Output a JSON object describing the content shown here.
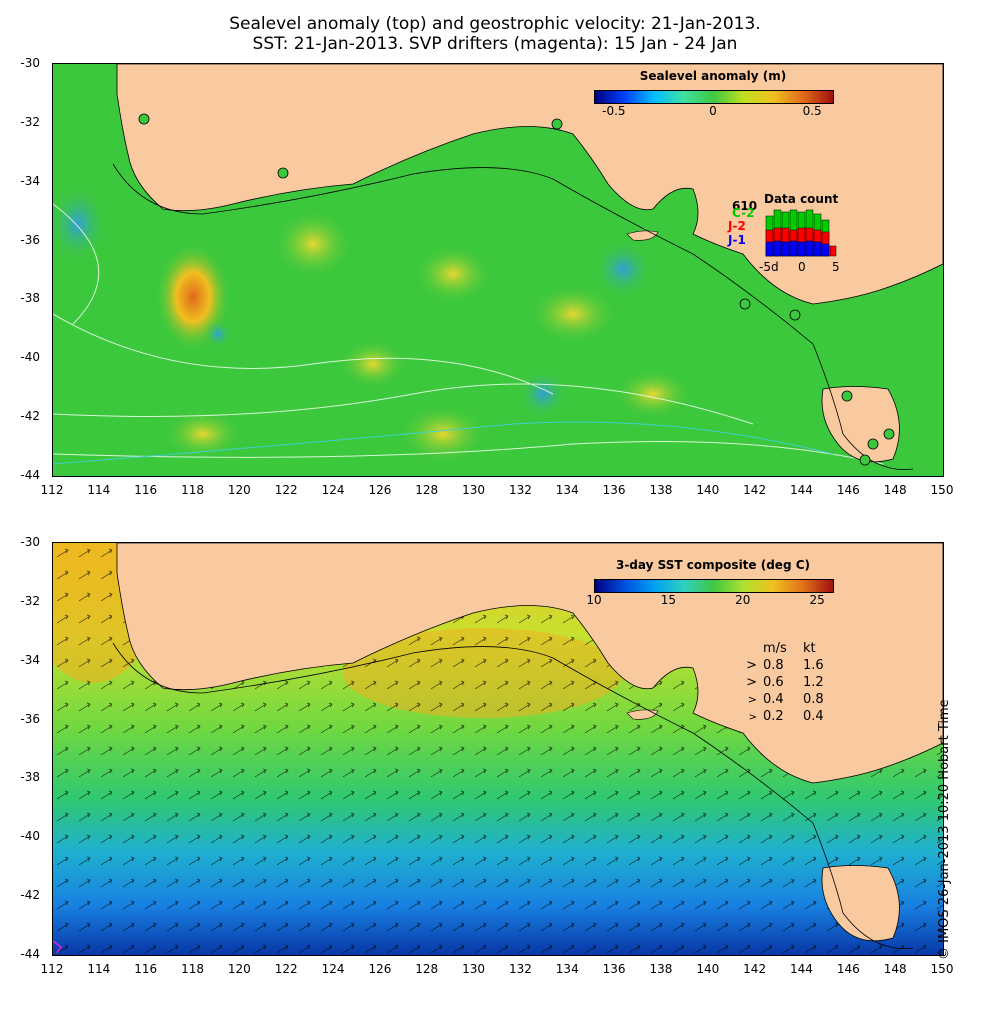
{
  "header": {
    "line1": "Sealevel anomaly (top) and geostrophic velocity: 21-Jan-2013.",
    "line2": "SST: 21-Jan-2013. SVP drifters (magenta): 15 Jan - 24 Jan"
  },
  "axes": {
    "lat_labels": [
      "-30",
      "-32",
      "-34",
      "-36",
      "-38",
      "-40",
      "-42",
      "-44"
    ],
    "lon_labels": [
      "112",
      "114",
      "116",
      "118",
      "120",
      "122",
      "124",
      "126",
      "128",
      "130",
      "132",
      "134",
      "136",
      "138",
      "140",
      "142",
      "144",
      "146",
      "148",
      "150"
    ],
    "lon_range": [
      112,
      150
    ],
    "lat_range": [
      -44,
      -30
    ]
  },
  "top_panel": {
    "legend_title": "Sealevel anomaly (m)",
    "cbar_labels": [
      "-0.5",
      "0",
      "0.5"
    ],
    "cbar_range": [
      -0.6,
      0.6
    ],
    "data_count": {
      "title": "Data count",
      "max_label": "610",
      "sat_c2": "C-2",
      "sat_j2": "J-2",
      "sat_j1": "J-1",
      "x_labels": [
        "-5d",
        "0",
        "5"
      ],
      "colors": {
        "c2": "#00cc00",
        "j2": "#ff0000",
        "j1": "#0000ff"
      }
    }
  },
  "bottom_panel": {
    "legend_title": "3-day SST composite (deg C)",
    "cbar_labels": [
      "10",
      "15",
      "20",
      "25"
    ],
    "cbar_range": [
      10,
      26
    ],
    "velocity_scale": {
      "header_ms": "m/s",
      "header_kt": "kt",
      "rows": [
        {
          "ms": "0.8",
          "kt": "1.6"
        },
        {
          "ms": "0.6",
          "kt": "1.2"
        },
        {
          "ms": "0.4",
          "kt": "0.8"
        },
        {
          "ms": "0.2",
          "kt": "0.4"
        }
      ]
    }
  },
  "credit": "© IMOS 26-Jan-2013 10:20 Hobart Time",
  "colors": {
    "land": "#f9c9a0",
    "ocean_sla": "#3cc83c",
    "ocean_sst_warm": "#b8e040",
    "ocean_sst_cool": "#2ca0e0"
  }
}
